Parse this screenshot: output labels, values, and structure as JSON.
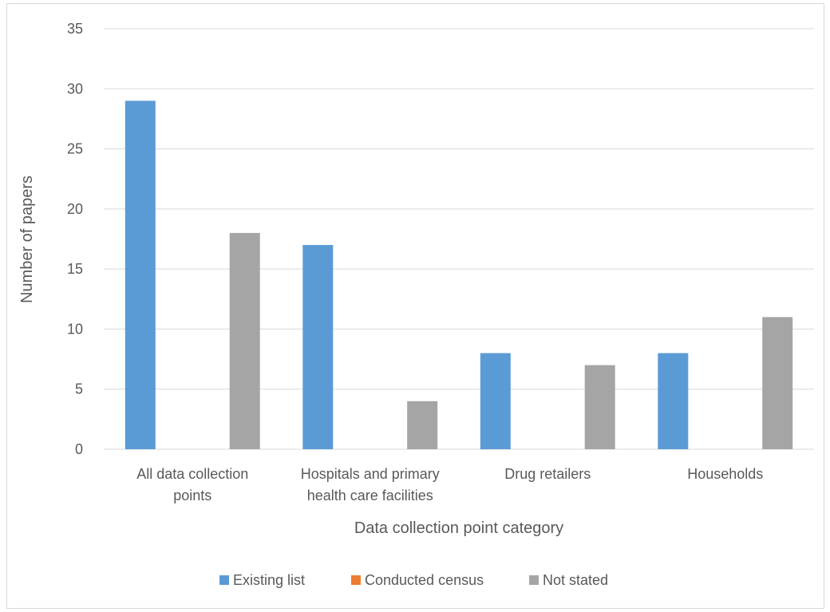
{
  "chart_data": {
    "type": "bar",
    "title": "",
    "xlabel": "Data collection point category",
    "ylabel": "Number of papers",
    "ylim": [
      0,
      35
    ],
    "yticks": [
      0,
      5,
      10,
      15,
      20,
      25,
      30,
      35
    ],
    "grid": true,
    "legend_position": "bottom",
    "categories": [
      [
        "All data collection",
        "points"
      ],
      [
        "Hospitals and primary",
        "health care facilities"
      ],
      [
        "Drug retailers"
      ],
      [
        "Households"
      ]
    ],
    "series": [
      {
        "name": "Existing list",
        "color": "#5b9bd5",
        "values": [
          29,
          17,
          8,
          8
        ]
      },
      {
        "name": "Conducted census",
        "color": "#ed7d31",
        "values": [
          0,
          0,
          0,
          0
        ]
      },
      {
        "name": "Not stated",
        "color": "#a5a5a5",
        "values": [
          18,
          4,
          7,
          11
        ]
      }
    ],
    "gridline_color": "#d9d9d9",
    "text_color": "#595959"
  }
}
